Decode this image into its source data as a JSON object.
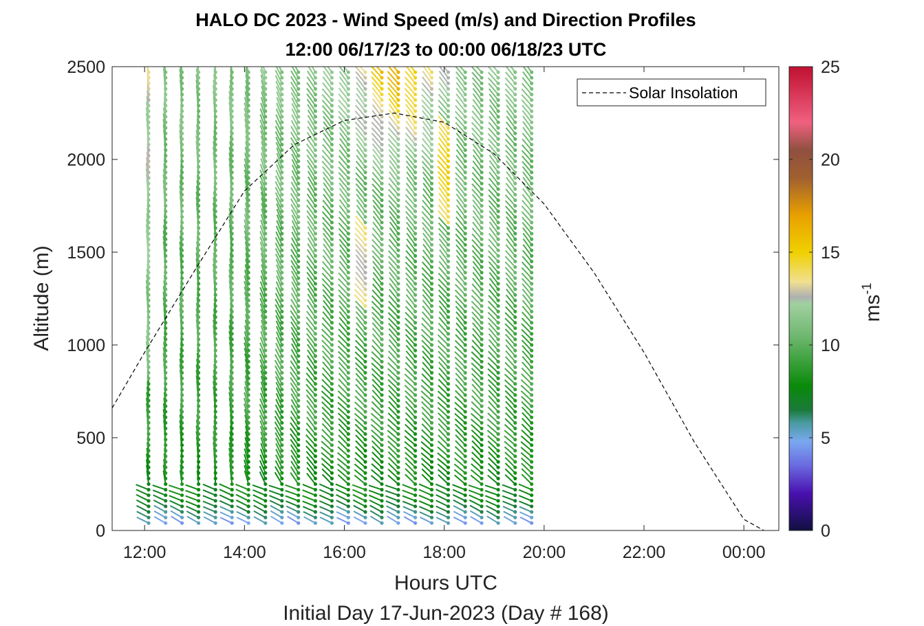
{
  "chart_data": {
    "type": "wind-barb-profile",
    "title_line1": "HALO DC 2023 - Wind Speed (m/s) and Direction Profiles",
    "title_line2": "12:00 06/17/23 to 00:00 06/18/23  UTC",
    "xlabel": "Hours UTC",
    "ylabel": "Altitude (m)",
    "footer": "Initial Day 17-Jun-2023 (Day # 168)",
    "xlim": [
      11.35,
      24.7
    ],
    "ylim": [
      0,
      2500
    ],
    "x_ticks": [
      12,
      14,
      16,
      18,
      20,
      22,
      24
    ],
    "x_tick_labels": [
      "12:00",
      "14:00",
      "16:00",
      "18:00",
      "20:00",
      "22:00",
      "00:00"
    ],
    "y_ticks": [
      0,
      500,
      1000,
      1500,
      2000,
      2500
    ],
    "y_tick_labels": [
      "0",
      "500",
      "1000",
      "1500",
      "2000",
      "2500"
    ],
    "colorbar": {
      "label": "ms",
      "label_exponent": "-1",
      "range": [
        0,
        25
      ],
      "ticks": [
        0,
        5,
        10,
        15,
        20,
        25
      ],
      "tick_labels": [
        "0",
        "5",
        "10",
        "15",
        "20",
        "25"
      ],
      "stops": [
        {
          "v": 0,
          "c": "#101040"
        },
        {
          "v": 2,
          "c": "#4a10b0"
        },
        {
          "v": 3.5,
          "c": "#6a6ae0"
        },
        {
          "v": 4.8,
          "c": "#7aa8f0"
        },
        {
          "v": 5.8,
          "c": "#4a9aa0"
        },
        {
          "v": 6.5,
          "c": "#1a7a3a"
        },
        {
          "v": 7.8,
          "c": "#0a8a0a"
        },
        {
          "v": 10.5,
          "c": "#70b870"
        },
        {
          "v": 12.2,
          "c": "#a0d0a0"
        },
        {
          "v": 12.6,
          "c": "#b0b0b0"
        },
        {
          "v": 13.4,
          "c": "#f0e090"
        },
        {
          "v": 15,
          "c": "#f0d000"
        },
        {
          "v": 17,
          "c": "#e8a000"
        },
        {
          "v": 19,
          "c": "#a06030"
        },
        {
          "v": 20.5,
          "c": "#905040"
        },
        {
          "v": 22,
          "c": "#f06080"
        },
        {
          "v": 25,
          "c": "#c01030"
        }
      ]
    },
    "profile_times": [
      12.08,
      12.42,
      12.75,
      13.08,
      13.42,
      13.75,
      14.08,
      14.42,
      14.75,
      15.08,
      15.42,
      15.75,
      16.08,
      16.42,
      16.75,
      17.08,
      17.42,
      17.75,
      18.08,
      18.42,
      18.75,
      19.08,
      19.42,
      19.75
    ],
    "altitude_step_m": 30,
    "altitude_range_m": [
      40,
      2480
    ],
    "legend": {
      "entries": [
        "Solar Insolation"
      ],
      "location": "top-right"
    },
    "solar_insolation": {
      "style": "dashed",
      "points": [
        [
          11.35,
          660
        ],
        [
          12,
          960
        ],
        [
          13,
          1400
        ],
        [
          14,
          1830
        ],
        [
          15,
          2080
        ],
        [
          16,
          2210
        ],
        [
          17,
          2250
        ],
        [
          18,
          2200
        ],
        [
          19,
          2030
        ],
        [
          20,
          1760
        ],
        [
          21,
          1390
        ],
        [
          22,
          960
        ],
        [
          23,
          480
        ],
        [
          24,
          60
        ],
        [
          24.4,
          0
        ]
      ]
    }
  }
}
